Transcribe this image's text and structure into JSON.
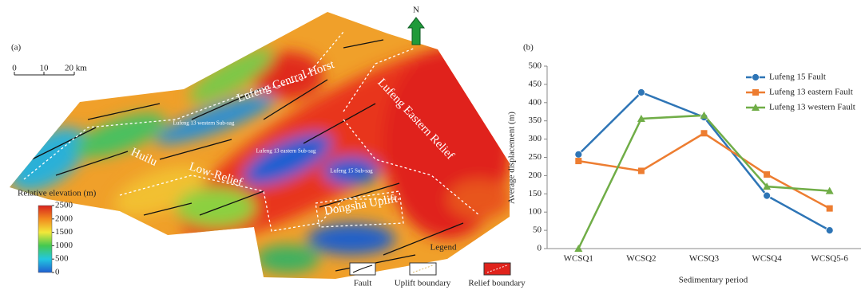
{
  "map": {
    "panel": "(a)",
    "north": "N",
    "scale": [
      "0",
      "10",
      "20 km"
    ],
    "colorbar": {
      "title": "Relative elevation (m)",
      "lim": [
        0,
        2500
      ],
      "ticks": [
        0,
        500,
        1000,
        1500,
        2000,
        2500
      ]
    },
    "regions": [
      "Lufeng Central Horst",
      "Lufeng Eastern Relief",
      "Huilu",
      "Low-Relief",
      "Lufeng 13 western Sub-sag",
      "Lufeng 13 eastern Sub-sag",
      "Lufeng 15 Sub-sag",
      "Dongsha Uplift"
    ],
    "legend": {
      "title": "Legend",
      "items": [
        "Fault",
        "Uplift boundary",
        "Relief boundary"
      ]
    }
  },
  "chart_data": {
    "type": "line",
    "panel": "(b)",
    "x_label": "Sedimentary period",
    "y_label": "Average displacement (m)",
    "categories": [
      "WCSQ1",
      "WCSQ2",
      "WCSQ3",
      "WCSQ4",
      "WCSQ5-6"
    ],
    "series": [
      {
        "name": "Lufeng 15 Fault",
        "color": "#2e75b6",
        "marker": "circle",
        "values": [
          258,
          428,
          360,
          145,
          50
        ]
      },
      {
        "name": "Lufeng 13 eastern Fault",
        "color": "#ed7d31",
        "marker": "square",
        "values": [
          240,
          213,
          316,
          203,
          110
        ]
      },
      {
        "name": "Lufeng 13 western Fault",
        "color": "#70ad47",
        "marker": "triangle",
        "values": [
          0,
          356,
          365,
          170,
          158
        ]
      }
    ],
    "ylim": [
      0,
      500
    ],
    "yticks": [
      0,
      50,
      100,
      150,
      200,
      250,
      300,
      350,
      400,
      450,
      500
    ]
  }
}
